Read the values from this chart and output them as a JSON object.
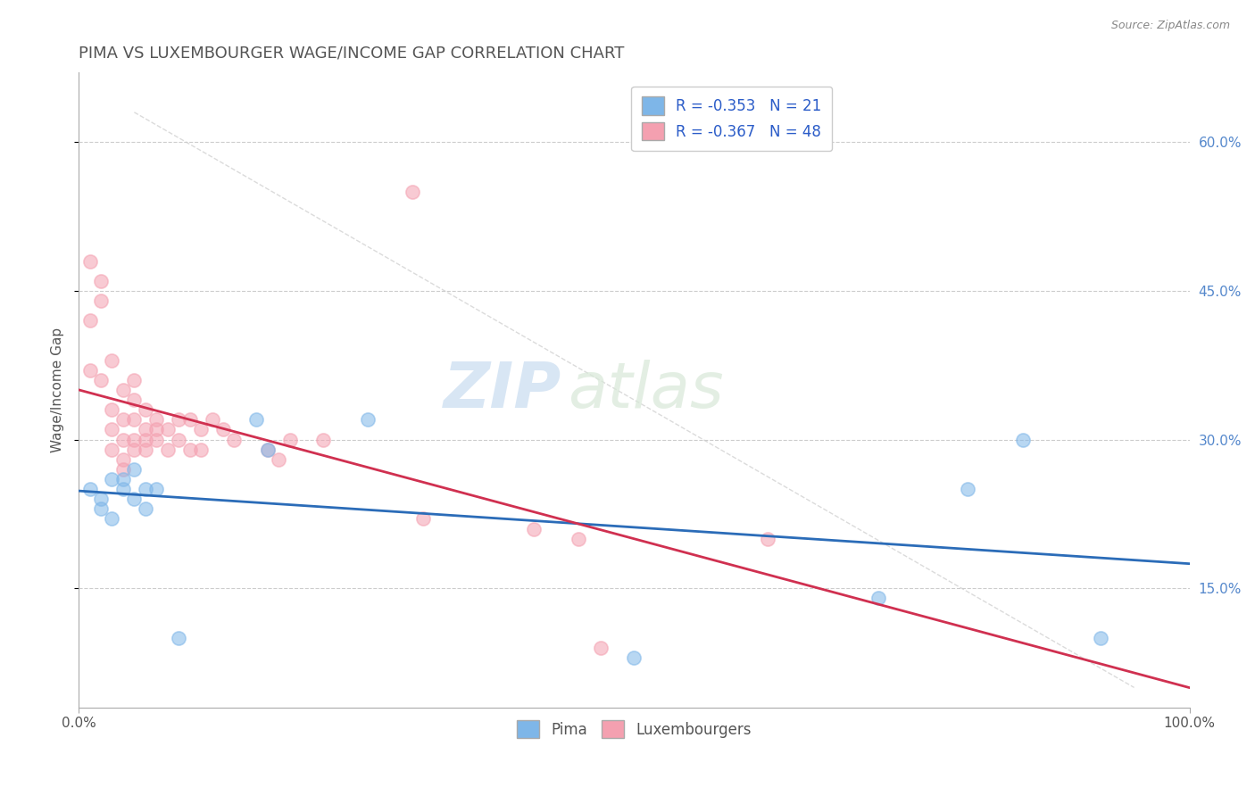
{
  "title": "PIMA VS LUXEMBOURGER WAGE/INCOME GAP CORRELATION CHART",
  "source_text": "Source: ZipAtlas.com",
  "ylabel": "Wage/Income Gap",
  "xlim": [
    0,
    1
  ],
  "ylim": [
    0.03,
    0.67
  ],
  "yticks_right": [
    0.15,
    0.3,
    0.45,
    0.6
  ],
  "ytick_labels_right": [
    "15.0%",
    "30.0%",
    "45.0%",
    "60.0%"
  ],
  "watermark_zip": "ZIP",
  "watermark_atlas": "atlas",
  "pima_R": -0.353,
  "pima_N": 21,
  "lux_R": -0.367,
  "lux_N": 48,
  "pima_color": "#7EB6E8",
  "lux_color": "#F4A0B0",
  "pima_line_color": "#2B6CB8",
  "lux_line_color": "#D03050",
  "background_color": "#FFFFFF",
  "grid_color": "#CCCCCC",
  "title_color": "#555555",
  "legend_text_color": "#2B5CC8",
  "pima_x": [
    0.01,
    0.02,
    0.02,
    0.03,
    0.03,
    0.04,
    0.04,
    0.05,
    0.05,
    0.06,
    0.06,
    0.07,
    0.09,
    0.16,
    0.17,
    0.26,
    0.5,
    0.72,
    0.8,
    0.85,
    0.92
  ],
  "pima_y": [
    0.25,
    0.24,
    0.23,
    0.26,
    0.22,
    0.26,
    0.25,
    0.27,
    0.24,
    0.25,
    0.23,
    0.25,
    0.1,
    0.32,
    0.29,
    0.32,
    0.08,
    0.14,
    0.25,
    0.3,
    0.1
  ],
  "lux_x": [
    0.01,
    0.01,
    0.01,
    0.02,
    0.02,
    0.02,
    0.03,
    0.03,
    0.03,
    0.03,
    0.04,
    0.04,
    0.04,
    0.04,
    0.04,
    0.05,
    0.05,
    0.05,
    0.05,
    0.05,
    0.06,
    0.06,
    0.06,
    0.06,
    0.07,
    0.07,
    0.07,
    0.08,
    0.08,
    0.09,
    0.09,
    0.1,
    0.1,
    0.11,
    0.11,
    0.12,
    0.13,
    0.14,
    0.17,
    0.18,
    0.19,
    0.22,
    0.3,
    0.31,
    0.41,
    0.45,
    0.47,
    0.62
  ],
  "lux_y": [
    0.37,
    0.42,
    0.48,
    0.46,
    0.44,
    0.36,
    0.38,
    0.33,
    0.31,
    0.29,
    0.35,
    0.32,
    0.3,
    0.28,
    0.27,
    0.36,
    0.34,
    0.32,
    0.3,
    0.29,
    0.33,
    0.31,
    0.3,
    0.29,
    0.32,
    0.31,
    0.3,
    0.31,
    0.29,
    0.32,
    0.3,
    0.32,
    0.29,
    0.31,
    0.29,
    0.32,
    0.31,
    0.3,
    0.29,
    0.28,
    0.3,
    0.3,
    0.55,
    0.22,
    0.21,
    0.2,
    0.09,
    0.2
  ],
  "marker_size": 120,
  "marker_alpha": 0.55,
  "marker_linewidth": 1.2
}
